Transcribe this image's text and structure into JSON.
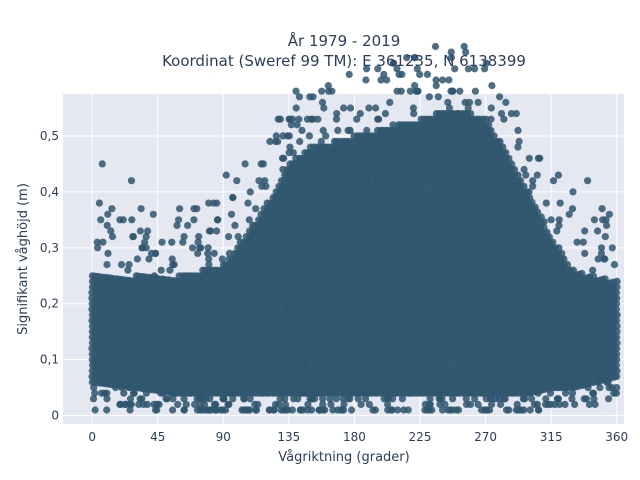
{
  "chart_data": {
    "type": "scatter",
    "title_lines": [
      "År 1979 - 2019",
      "Koordinat (Sweref 99 TM): E 361235, N 6138399"
    ],
    "xlabel": "Vågriktning (grader)",
    "ylabel": "Signifikant våghöjd (m)",
    "xlim": [
      -20,
      365
    ],
    "ylim": [
      -0.015,
      0.575
    ],
    "xticks": [
      0,
      45,
      90,
      135,
      180,
      225,
      270,
      315,
      360
    ],
    "xtick_labels": [
      "0",
      "45",
      "90",
      "135",
      "180",
      "225",
      "270",
      "315",
      "360"
    ],
    "yticks": [
      0,
      0.1,
      0.2,
      0.3,
      0.4,
      0.5
    ],
    "ytick_labels": [
      "0",
      "0,1",
      "0,2",
      "0,3",
      "0,4",
      "0,5"
    ],
    "grid": true,
    "marker_color": "#2f566e",
    "plot_bg": "#e5e8f0",
    "envelope": {
      "x": [
        0,
        30,
        60,
        90,
        100,
        120,
        135,
        150,
        165,
        180,
        195,
        210,
        225,
        240,
        255,
        270,
        285,
        300,
        315,
        330,
        345,
        360
      ],
      "lower": [
        0.06,
        0.05,
        0.04,
        0.04,
        0.04,
        0.04,
        0.04,
        0.04,
        0.04,
        0.04,
        0.04,
        0.04,
        0.04,
        0.04,
        0.04,
        0.04,
        0.04,
        0.04,
        0.05,
        0.05,
        0.06,
        0.07
      ],
      "upper": [
        0.25,
        0.25,
        0.25,
        0.27,
        0.3,
        0.38,
        0.45,
        0.48,
        0.49,
        0.5,
        0.51,
        0.52,
        0.53,
        0.545,
        0.545,
        0.53,
        0.47,
        0.4,
        0.32,
        0.26,
        0.25,
        0.24
      ]
    },
    "outliers": [
      {
        "x": 7,
        "y": 0.45
      },
      {
        "x": 27,
        "y": 0.42
      },
      {
        "x": 5,
        "y": 0.38
      },
      {
        "x": 2,
        "y": 0.01
      },
      {
        "x": 10,
        "y": 0.01
      },
      {
        "x": 26,
        "y": 0.01
      },
      {
        "x": 42,
        "y": 0.36
      },
      {
        "x": 60,
        "y": 0.37
      },
      {
        "x": 80,
        "y": 0.38
      },
      {
        "x": 92,
        "y": 0.43
      },
      {
        "x": 105,
        "y": 0.45
      },
      {
        "x": 340,
        "y": 0.42
      },
      {
        "x": 330,
        "y": 0.4
      },
      {
        "x": 350,
        "y": 0.37
      },
      {
        "x": 355,
        "y": 0.36
      },
      {
        "x": 357,
        "y": 0.3
      },
      {
        "x": 358,
        "y": 0.04
      },
      {
        "x": 360,
        "y": 0.05
      },
      {
        "x": 320,
        "y": 0.43
      },
      {
        "x": 300,
        "y": 0.46
      },
      {
        "x": 293,
        "y": 0.49
      }
    ]
  }
}
